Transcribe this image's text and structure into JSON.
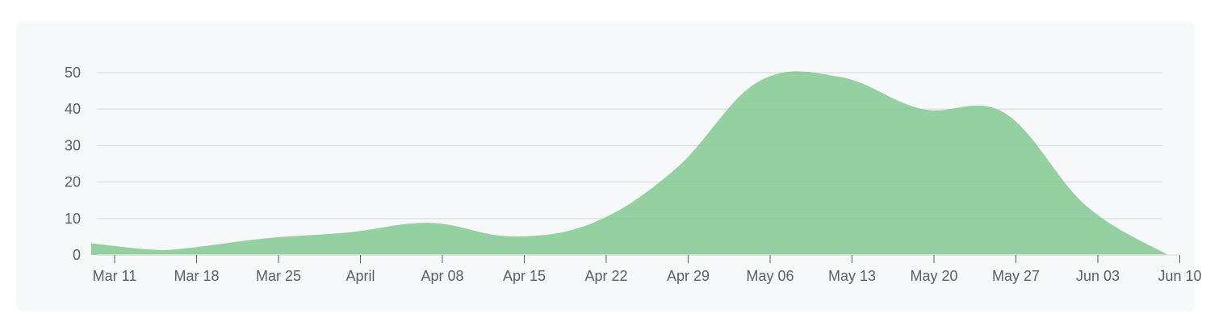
{
  "chart_data": {
    "type": "area",
    "title": "",
    "xlabel": "",
    "ylabel": "",
    "ylim": [
      0,
      50
    ],
    "yticks": [
      0,
      10,
      20,
      30,
      40,
      50
    ],
    "grid": true,
    "colors": {
      "fill": "#7cc58a",
      "grid": "#dfe2e5",
      "axis_text": "#586069",
      "background": "#f6f8fa"
    },
    "xticks": [
      {
        "date": "2019-03-11",
        "label": "Mar 11"
      },
      {
        "date": "2019-03-18",
        "label": "Mar 18"
      },
      {
        "date": "2019-03-25",
        "label": "Mar 25"
      },
      {
        "date": "2019-04-01",
        "label": "April"
      },
      {
        "date": "2019-04-08",
        "label": "Apr 08"
      },
      {
        "date": "2019-04-15",
        "label": "Apr 15"
      },
      {
        "date": "2019-04-22",
        "label": "Apr 22"
      },
      {
        "date": "2019-04-29",
        "label": "Apr 29"
      },
      {
        "date": "2019-05-06",
        "label": "May 06"
      },
      {
        "date": "2019-05-13",
        "label": "May 13"
      },
      {
        "date": "2019-05-20",
        "label": "May 20"
      },
      {
        "date": "2019-05-27",
        "label": "May 27"
      },
      {
        "date": "2019-06-03",
        "label": "Jun 03"
      },
      {
        "date": "2019-06-10",
        "label": "Jun 10"
      }
    ],
    "x": [
      "2019-03-09",
      "2019-03-14",
      "2019-03-17",
      "2019-03-24",
      "2019-03-31",
      "2019-04-07",
      "2019-04-14",
      "2019-04-21",
      "2019-04-28",
      "2019-05-05",
      "2019-05-12",
      "2019-05-19",
      "2019-05-26",
      "2019-06-02",
      "2019-06-09"
    ],
    "values": [
      3.2,
      1.5,
      1.8,
      4.6,
      6.2,
      8.8,
      5.1,
      9.0,
      23.8,
      47.5,
      48.8,
      40.0,
      39.0,
      13.5,
      0
    ]
  }
}
